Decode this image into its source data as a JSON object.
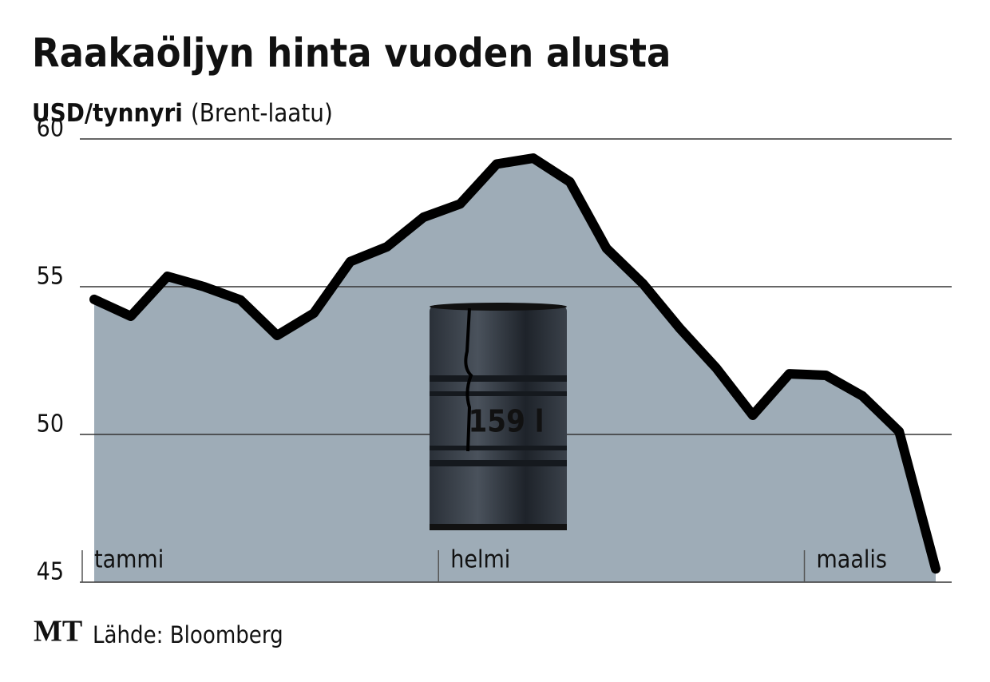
{
  "chart_data": {
    "type": "area-line",
    "title": "Raakaöljyn hinta vuoden alusta",
    "unit": "USD/tynnyri",
    "subtitle": "(Brent-laatu)",
    "categories": [
      "tammi",
      null,
      null,
      null,
      null,
      null,
      null,
      null,
      null,
      null,
      "helmi",
      null,
      null,
      null,
      null,
      null,
      null,
      null,
      null,
      null,
      "maalis",
      null,
      null,
      null
    ],
    "values": [
      54.57,
      54.0,
      55.35,
      55.0,
      54.55,
      53.35,
      54.1,
      55.85,
      56.35,
      57.35,
      57.8,
      59.15,
      59.35,
      58.55,
      56.3,
      55.1,
      53.6,
      52.25,
      50.65,
      52.05,
      52.0,
      51.3,
      50.1,
      45.45
    ],
    "ylim": [
      45,
      60
    ],
    "yticks": [
      45,
      50,
      55,
      60
    ],
    "grid": true,
    "line_color": "#000000",
    "fill_color": "#9eacb7",
    "barrel_label": "159 l",
    "logo": "MT",
    "source": "Lähde: Bloomberg"
  }
}
